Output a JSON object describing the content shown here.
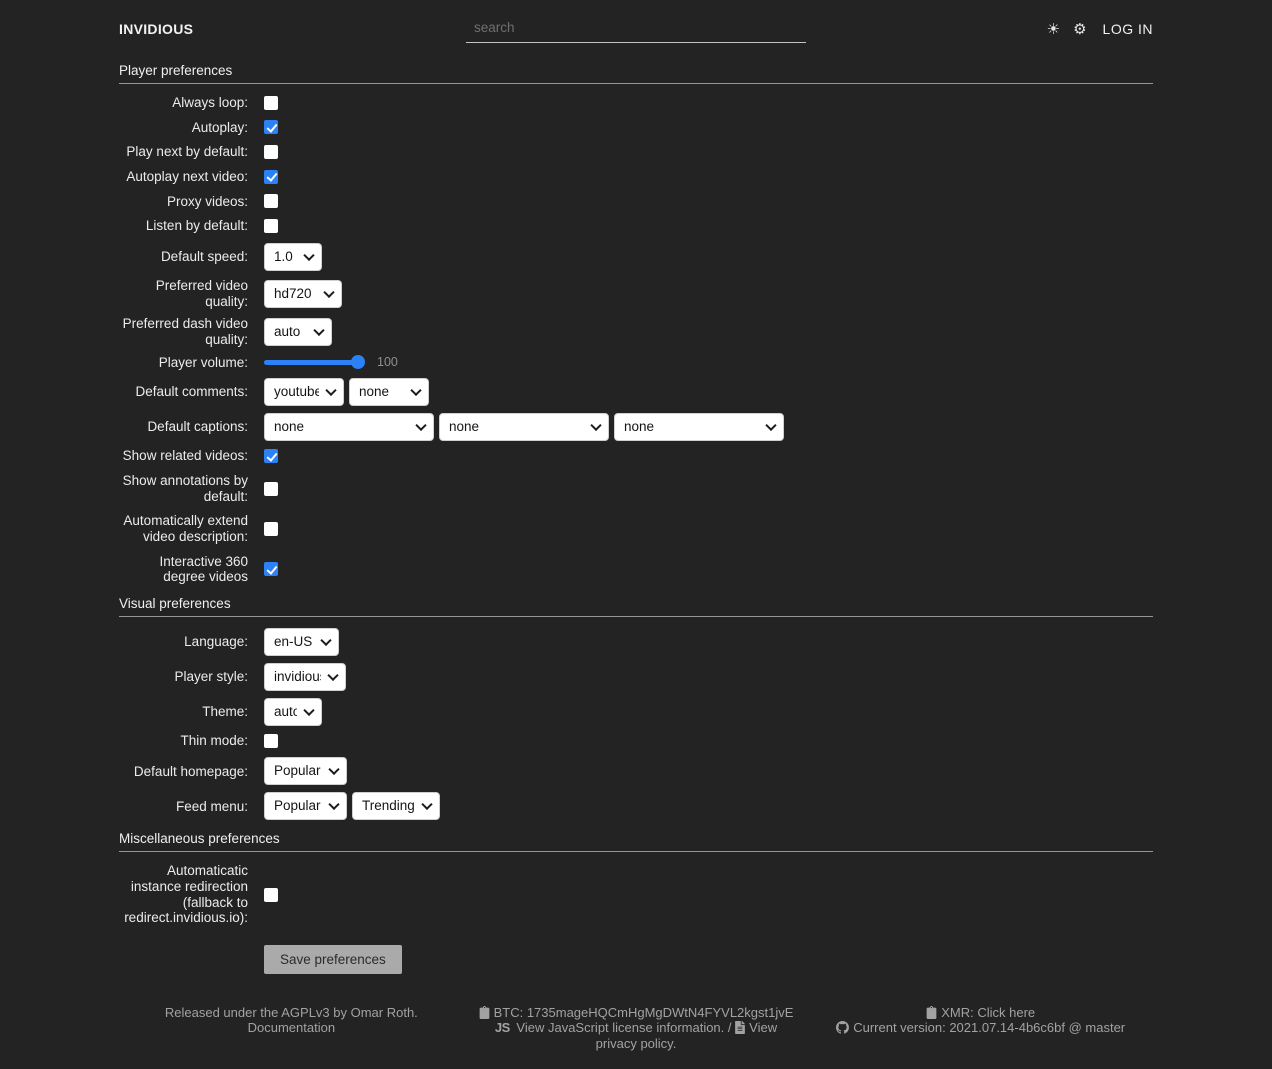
{
  "colors": {
    "background": "#232323",
    "accent": "#2b81f5",
    "link": "#a2a2a2",
    "control_bg": "#ffffff"
  },
  "header": {
    "logo": "INVIDIOUS",
    "search_placeholder": "search",
    "login": "LOG IN"
  },
  "player": {
    "title": "Player preferences",
    "always_loop": {
      "label": "Always loop:",
      "checked": false
    },
    "autoplay": {
      "label": "Autoplay:",
      "checked": true
    },
    "play_next": {
      "label": "Play next by default:",
      "checked": false
    },
    "autoplay_next": {
      "label": "Autoplay next video:",
      "checked": true
    },
    "proxy_videos": {
      "label": "Proxy videos:",
      "checked": false
    },
    "listen": {
      "label": "Listen by default:",
      "checked": false
    },
    "speed": {
      "label": "Default speed:",
      "value": "1.0"
    },
    "quality": {
      "label": "Preferred video quality:",
      "value": "hd720"
    },
    "dash_quality": {
      "label": "Preferred dash video quality:",
      "value": "auto"
    },
    "volume": {
      "label": "Player volume:",
      "value": 100,
      "display": "100"
    },
    "comments": {
      "label": "Default comments:",
      "first": "youtube",
      "second": "none"
    },
    "captions": {
      "label": "Default captions:",
      "first": "none",
      "second": "none",
      "third": "none"
    },
    "related": {
      "label": "Show related videos:",
      "checked": true
    },
    "annotations": {
      "label": "Show annotations by default:",
      "checked": false
    },
    "extend_desc": {
      "label": "Automatically extend video description:",
      "checked": false
    },
    "vr360": {
      "label": "Interactive 360 degree videos",
      "checked": true
    }
  },
  "visual": {
    "title": "Visual preferences",
    "language": {
      "label": "Language:",
      "value": "en-US"
    },
    "player_style": {
      "label": "Player style:",
      "value": "invidious"
    },
    "theme": {
      "label": "Theme:",
      "value": "auto"
    },
    "thin_mode": {
      "label": "Thin mode:",
      "checked": false
    },
    "homepage": {
      "label": "Default homepage:",
      "value": "Popular"
    },
    "feed_menu": {
      "label": "Feed menu:",
      "first": "Popular",
      "second": "Trending"
    }
  },
  "misc": {
    "title": "Miscellaneous preferences",
    "redirect": {
      "label": "Automaticatic instance redirection (fallback to redirect.invidious.io):",
      "checked": false
    }
  },
  "save_label": "Save preferences",
  "footer": {
    "released": "Released under the AGPLv3 by Omar Roth.",
    "documentation": "Documentation",
    "btc": "BTC: 1735mageHQCmHgMgDWtN4FYVL2kgst1jvE",
    "js_badge": "JS",
    "js_license": "View JavaScript license information.",
    "slash": "/",
    "privacy": "View privacy policy.",
    "xmr": "XMR:",
    "xmr_link": "Click here",
    "version_label": "Current version:",
    "version_link": "2021.07.14-4b6c6bf @ master"
  }
}
